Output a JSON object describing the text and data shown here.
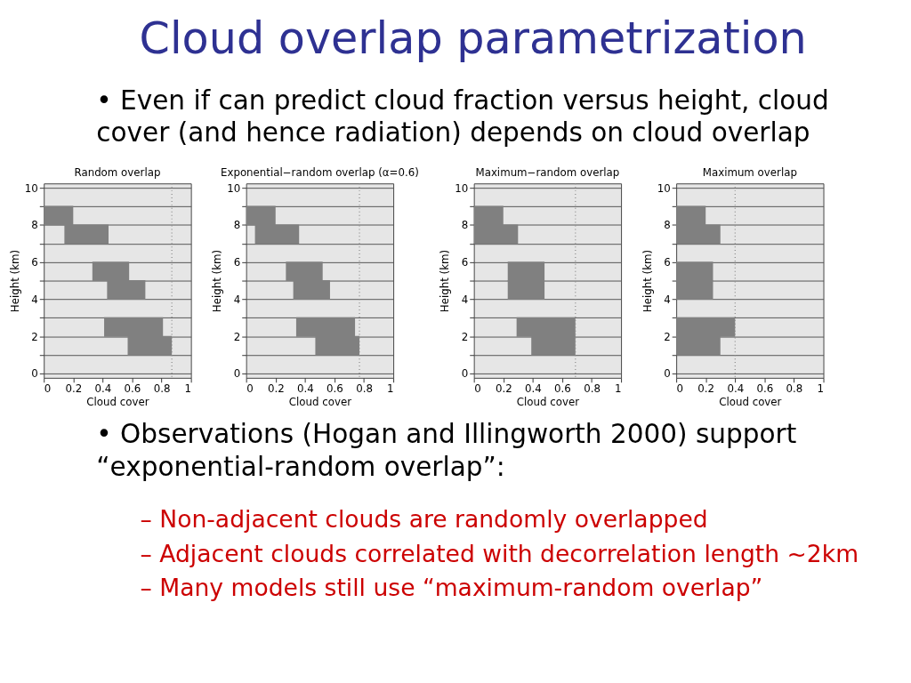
{
  "chart_data": [
    {
      "type": "other",
      "title": "Cloud overlap parametrization",
      "annotations": [
        "• Even if can predict cloud fraction versus height, cloud\n   cover (and hence radiation) depends on cloud overlap"
      ],
      "color": "#000000"
    },
    {
      "type": "bar",
      "orientation": "horizontal",
      "title": "Random overlap",
      "xlabel": "Cloud cover",
      "ylabel": "Height (km)",
      "x": [
        1.5,
        2.5,
        4.5,
        5.5,
        7.5,
        8.5
      ],
      "values": [
        0.3,
        0.4,
        0.26,
        0.25,
        0.3,
        0.2
      ],
      "base": [
        0.57,
        0.41,
        0.43,
        0.33,
        0.14,
        0
      ],
      "color": "#808080",
      "xlim": [
        0,
        1
      ],
      "xticks": [
        0,
        0.2,
        0.4,
        0.6,
        0.8,
        1
      ],
      "ylim": [
        0,
        10
      ],
      "yticks": [
        0,
        {
          "value": 1,
          "label": null
        },
        2,
        {
          "value": 3,
          "label": null
        },
        4,
        {
          "value": 5,
          "label": null
        },
        6,
        {
          "value": 7,
          "label": null
        },
        8,
        {
          "value": 9,
          "label": null
        },
        10
      ],
      "grid": "y",
      "ref_lines": [
        {
          "axis": "x",
          "value": 0.87,
          "color": "#888888",
          "line_style": "dotted"
        }
      ]
    },
    {
      "type": "bar",
      "orientation": "horizontal",
      "title": "Exponential−random overlap (α=0.6)",
      "xlabel": "Cloud cover",
      "ylabel": "Height (km)",
      "x": [
        1.5,
        2.5,
        4.5,
        5.5,
        7.5,
        8.5
      ],
      "values": [
        0.3,
        0.4,
        0.25,
        0.25,
        0.3,
        0.2
      ],
      "base": [
        0.47,
        0.34,
        0.32,
        0.27,
        0.06,
        0
      ],
      "color": "#808080",
      "xlim": [
        0,
        1
      ],
      "xticks": [
        0,
        0.2,
        0.4,
        0.6,
        0.8,
        1
      ],
      "ylim": [
        0,
        10
      ],
      "yticks": [
        0,
        {
          "value": 1,
          "label": null
        },
        2,
        {
          "value": 3,
          "label": null
        },
        4,
        {
          "value": 5,
          "label": null
        },
        6,
        {
          "value": 7,
          "label": null
        },
        8,
        {
          "value": 9,
          "label": null
        },
        10
      ],
      "grid": "y",
      "ref_lines": [
        {
          "axis": "x",
          "value": 0.77,
          "color": "#888888",
          "line_style": "dotted"
        }
      ]
    },
    {
      "type": "bar",
      "orientation": "horizontal",
      "title": "Maximum−random overlap",
      "xlabel": "Cloud cover",
      "ylabel": "Height (km)",
      "x": [
        1.5,
        2.5,
        4.5,
        5.5,
        7.5,
        8.5
      ],
      "values": [
        0.3,
        0.4,
        0.25,
        0.25,
        0.3,
        0.2
      ],
      "base": [
        0.39,
        0.29,
        0.23,
        0.23,
        0,
        0
      ],
      "color": "#808080",
      "xlim": [
        0,
        1
      ],
      "xticks": [
        0,
        0.2,
        0.4,
        0.6,
        0.8,
        1
      ],
      "ylim": [
        0,
        10
      ],
      "yticks": [
        0,
        {
          "value": 1,
          "label": null
        },
        2,
        {
          "value": 3,
          "label": null
        },
        4,
        {
          "value": 5,
          "label": null
        },
        6,
        {
          "value": 7,
          "label": null
        },
        8,
        {
          "value": 9,
          "label": null
        },
        10
      ],
      "grid": "y",
      "ref_lines": [
        {
          "axis": "x",
          "value": 0.69,
          "color": "#888888",
          "line_style": "dotted"
        }
      ]
    },
    {
      "type": "bar",
      "orientation": "horizontal",
      "title": "Maximum overlap",
      "xlabel": "Cloud cover",
      "ylabel": "Height (km)",
      "x": [
        1.5,
        2.5,
        4.5,
        5.5,
        7.5,
        8.5
      ],
      "values": [
        0.3,
        0.4,
        0.25,
        0.25,
        0.3,
        0.2
      ],
      "base": [
        0,
        0,
        0,
        0,
        0,
        0
      ],
      "color": "#808080",
      "xlim": [
        0,
        1
      ],
      "xticks": [
        0,
        0.2,
        0.4,
        0.6,
        0.8,
        1
      ],
      "ylim": [
        0,
        10
      ],
      "yticks": [
        0,
        {
          "value": 1,
          "label": null
        },
        2,
        {
          "value": 3,
          "label": null
        },
        4,
        {
          "value": 5,
          "label": null
        },
        6,
        {
          "value": 7,
          "label": null
        },
        8,
        {
          "value": 9,
          "label": null
        },
        10
      ],
      "grid": "y",
      "ref_lines": [
        {
          "axis": "x",
          "value": 0.4,
          "color": "#888888",
          "line_style": "dotted"
        }
      ]
    },
    {
      "type": "other",
      "annotations": [
        "• Observations (Hogan and Illingworth 2000) support\n   “exponential-random overlap”:"
      ],
      "color": "#000000"
    },
    {
      "type": "other",
      "annotations": [
        "– Non-adjacent clouds are randomly overlapped",
        "– Adjacent clouds correlated with decorrelation length ~2km",
        "– Many models still use “maximum-random overlap”"
      ],
      "color": "#cc0000"
    }
  ]
}
